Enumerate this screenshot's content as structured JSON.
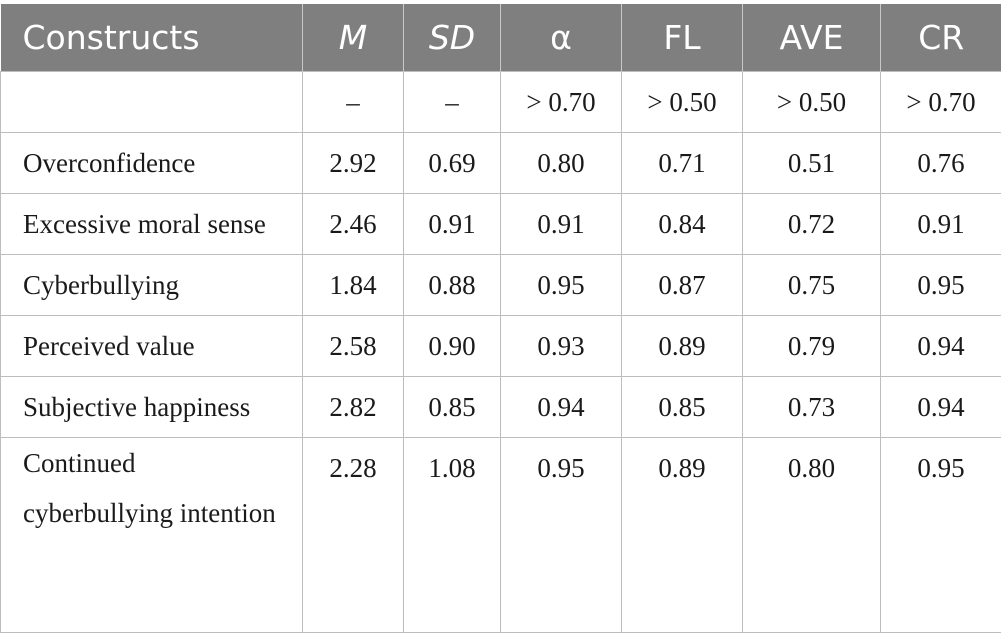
{
  "table": {
    "headers": [
      "Constructs",
      "M",
      "SD",
      "α",
      "FL",
      "AVE",
      "CR"
    ],
    "rows": [
      [
        "",
        "–",
        "–",
        "> 0.70",
        "> 0.50",
        "> 0.50",
        "> 0.70"
      ],
      [
        "Overconfidence",
        "2.92",
        "0.69",
        "0.80",
        "0.71",
        "0.51",
        "0.76"
      ],
      [
        "Excessive moral sense",
        "2.46",
        "0.91",
        "0.91",
        "0.84",
        "0.72",
        "0.91"
      ],
      [
        "Cyberbullying",
        "1.84",
        "0.88",
        "0.95",
        "0.87",
        "0.75",
        "0.95"
      ],
      [
        "Perceived value",
        "2.58",
        "0.90",
        "0.93",
        "0.89",
        "0.79",
        "0.94"
      ],
      [
        "Subjective happiness",
        "2.82",
        "0.85",
        "0.94",
        "0.85",
        "0.73",
        "0.94"
      ],
      [
        "Continued cyberbullying intention",
        "2.28",
        "1.08",
        "0.95",
        "0.89",
        "0.80",
        "0.95"
      ]
    ]
  }
}
